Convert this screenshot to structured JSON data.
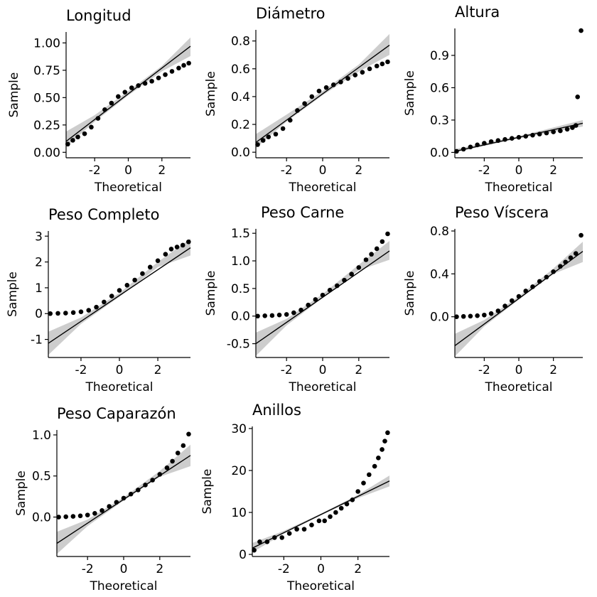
{
  "chart_data": [
    {
      "type": "scatter",
      "title": "Longitud",
      "xlabel": "Theoretical",
      "ylabel": "Sample",
      "xlim": [
        -3.7,
        3.7
      ],
      "ylim": [
        -0.05,
        1.1
      ],
      "xticks": [
        -2,
        0,
        2
      ],
      "xtick_labels": [
        "-2",
        "0",
        "2"
      ],
      "yticks": [
        0,
        0.25,
        0.5,
        0.75,
        1.0
      ],
      "ytick_labels": [
        "0.00",
        "0.25",
        "0.50",
        "0.75",
        "1.00"
      ],
      "points": [
        [
          -3.6,
          0.075
        ],
        [
          -3.3,
          0.11
        ],
        [
          -3.0,
          0.14
        ],
        [
          -2.6,
          0.17
        ],
        [
          -2.2,
          0.23
        ],
        [
          -1.8,
          0.31
        ],
        [
          -1.4,
          0.39
        ],
        [
          -1.0,
          0.45
        ],
        [
          -0.6,
          0.51
        ],
        [
          -0.2,
          0.55
        ],
        [
          0.2,
          0.59
        ],
        [
          0.6,
          0.61
        ],
        [
          1.0,
          0.63
        ],
        [
          1.4,
          0.65
        ],
        [
          1.8,
          0.68
        ],
        [
          2.2,
          0.71
        ],
        [
          2.6,
          0.74
        ],
        [
          3.0,
          0.77
        ],
        [
          3.3,
          0.795
        ],
        [
          3.6,
          0.815
        ]
      ],
      "line": [
        [
          -3.7,
          0.1
        ],
        [
          3.7,
          0.97
        ]
      ],
      "band": [
        [
          -3.7,
          0.05,
          0.19
        ],
        [
          -2.0,
          0.28,
          0.34
        ],
        [
          0.0,
          0.52,
          0.56
        ],
        [
          2.0,
          0.74,
          0.79
        ],
        [
          3.7,
          0.88,
          1.05
        ]
      ]
    },
    {
      "type": "scatter",
      "title": "Diámetro",
      "xlabel": "Theoretical",
      "ylabel": "Sample",
      "xlim": [
        -3.7,
        3.7
      ],
      "ylim": [
        -0.04,
        0.88
      ],
      "xticks": [
        -2,
        0,
        2
      ],
      "xtick_labels": [
        "-2",
        "0",
        "2"
      ],
      "yticks": [
        0,
        0.2,
        0.4,
        0.6,
        0.8
      ],
      "ytick_labels": [
        "0.0",
        "0.2",
        "0.4",
        "0.6",
        "0.8"
      ],
      "points": [
        [
          -3.6,
          0.055
        ],
        [
          -3.3,
          0.085
        ],
        [
          -3.0,
          0.11
        ],
        [
          -2.6,
          0.13
        ],
        [
          -2.2,
          0.17
        ],
        [
          -1.8,
          0.23
        ],
        [
          -1.4,
          0.3
        ],
        [
          -1.0,
          0.35
        ],
        [
          -0.6,
          0.4
        ],
        [
          -0.2,
          0.44
        ],
        [
          0.2,
          0.465
        ],
        [
          0.6,
          0.485
        ],
        [
          1.0,
          0.505
        ],
        [
          1.4,
          0.53
        ],
        [
          1.8,
          0.555
        ],
        [
          2.2,
          0.575
        ],
        [
          2.6,
          0.6
        ],
        [
          3.0,
          0.62
        ],
        [
          3.3,
          0.635
        ],
        [
          3.6,
          0.65
        ]
      ],
      "line": [
        [
          -3.7,
          0.07
        ],
        [
          3.7,
          0.77
        ]
      ],
      "band": [
        [
          -3.7,
          0.03,
          0.13
        ],
        [
          -2.0,
          0.22,
          0.27
        ],
        [
          0.0,
          0.41,
          0.44
        ],
        [
          2.0,
          0.58,
          0.63
        ],
        [
          3.7,
          0.7,
          0.85
        ]
      ]
    },
    {
      "type": "scatter",
      "title": "Altura",
      "xlabel": "Theoretical",
      "ylabel": "Sample",
      "xlim": [
        -3.7,
        3.7
      ],
      "ylim": [
        -0.05,
        1.15
      ],
      "xticks": [
        -2,
        0,
        2
      ],
      "xtick_labels": [
        "-2",
        "0",
        "2"
      ],
      "yticks": [
        0,
        0.3,
        0.6,
        0.9
      ],
      "ytick_labels": [
        "0.0",
        "0.3",
        "0.6",
        "0.9"
      ],
      "points": [
        [
          -3.6,
          0.01
        ],
        [
          -3.2,
          0.03
        ],
        [
          -2.8,
          0.05
        ],
        [
          -2.4,
          0.07
        ],
        [
          -2.0,
          0.085
        ],
        [
          -1.6,
          0.1
        ],
        [
          -1.2,
          0.11
        ],
        [
          -0.8,
          0.12
        ],
        [
          -0.4,
          0.13
        ],
        [
          0.0,
          0.14
        ],
        [
          0.4,
          0.15
        ],
        [
          0.8,
          0.16
        ],
        [
          1.2,
          0.17
        ],
        [
          1.6,
          0.18
        ],
        [
          2.0,
          0.19
        ],
        [
          2.4,
          0.2
        ],
        [
          2.8,
          0.215
        ],
        [
          3.1,
          0.23
        ],
        [
          3.3,
          0.25
        ],
        [
          3.4,
          0.515
        ],
        [
          3.6,
          1.13
        ]
      ],
      "line": [
        [
          -3.7,
          0.01
        ],
        [
          3.7,
          0.27
        ]
      ],
      "band": [
        [
          -3.7,
          0.0,
          0.03
        ],
        [
          0.0,
          0.13,
          0.15
        ],
        [
          3.7,
          0.24,
          0.3
        ]
      ]
    },
    {
      "type": "scatter",
      "title": "Peso Completo",
      "xlabel": "Theoretical",
      "ylabel": "Sample",
      "xlim": [
        -3.7,
        3.7
      ],
      "ylim": [
        -1.7,
        3.2
      ],
      "xticks": [
        -2,
        0,
        2
      ],
      "xtick_labels": [
        "-2",
        "0",
        "2"
      ],
      "yticks": [
        -1,
        0,
        1,
        2,
        3
      ],
      "ytick_labels": [
        "-1",
        "0",
        "1",
        "2",
        "3"
      ],
      "points": [
        [
          -3.6,
          0.0
        ],
        [
          -3.2,
          0.01
        ],
        [
          -2.8,
          0.02
        ],
        [
          -2.4,
          0.04
        ],
        [
          -2.0,
          0.07
        ],
        [
          -1.6,
          0.13
        ],
        [
          -1.2,
          0.25
        ],
        [
          -0.8,
          0.45
        ],
        [
          -0.4,
          0.68
        ],
        [
          0.0,
          0.9
        ],
        [
          0.4,
          1.1
        ],
        [
          0.8,
          1.3
        ],
        [
          1.2,
          1.55
        ],
        [
          1.6,
          1.8
        ],
        [
          2.0,
          2.05
        ],
        [
          2.4,
          2.3
        ],
        [
          2.7,
          2.5
        ],
        [
          3.0,
          2.58
        ],
        [
          3.3,
          2.65
        ],
        [
          3.6,
          2.78
        ]
      ],
      "line": [
        [
          -3.7,
          -1.15
        ],
        [
          3.7,
          2.55
        ]
      ],
      "band": [
        [
          -3.7,
          -1.6,
          -0.7
        ],
        [
          -2.0,
          -0.4,
          -0.15
        ],
        [
          0.0,
          0.65,
          0.8
        ],
        [
          2.0,
          1.8,
          2.0
        ],
        [
          3.7,
          2.25,
          2.9
        ]
      ]
    },
    {
      "type": "scatter",
      "title": "Peso Carne",
      "xlabel": "Theoretical",
      "ylabel": "Sample",
      "xlim": [
        -3.7,
        3.7
      ],
      "ylim": [
        -0.75,
        1.58
      ],
      "xticks": [
        -2,
        0,
        2
      ],
      "xtick_labels": [
        "-2",
        "0",
        "2"
      ],
      "yticks": [
        -0.5,
        0,
        0.5,
        1.0,
        1.5
      ],
      "ytick_labels": [
        "-0.5",
        "0.0",
        "0.5",
        "1.0",
        "1.5"
      ],
      "points": [
        [
          -3.6,
          0.0
        ],
        [
          -3.2,
          0.005
        ],
        [
          -2.8,
          0.01
        ],
        [
          -2.4,
          0.02
        ],
        [
          -2.0,
          0.03
        ],
        [
          -1.6,
          0.06
        ],
        [
          -1.2,
          0.11
        ],
        [
          -0.8,
          0.2
        ],
        [
          -0.4,
          0.3
        ],
        [
          0.0,
          0.38
        ],
        [
          0.4,
          0.47
        ],
        [
          0.8,
          0.55
        ],
        [
          1.2,
          0.65
        ],
        [
          1.6,
          0.76
        ],
        [
          2.0,
          0.88
        ],
        [
          2.4,
          1.02
        ],
        [
          2.7,
          1.12
        ],
        [
          3.0,
          1.22
        ],
        [
          3.3,
          1.35
        ],
        [
          3.6,
          1.49
        ]
      ],
      "line": [
        [
          -3.7,
          -0.5
        ],
        [
          3.7,
          1.18
        ]
      ],
      "band": [
        [
          -3.7,
          -0.72,
          -0.3
        ],
        [
          -2.0,
          -0.17,
          -0.05
        ],
        [
          0.0,
          0.33,
          0.4
        ],
        [
          2.0,
          0.83,
          0.93
        ],
        [
          3.7,
          1.02,
          1.36
        ]
      ]
    },
    {
      "type": "scatter",
      "title": "Peso Víscera",
      "xlabel": "Theoretical",
      "ylabel": "Sample",
      "xlim": [
        -3.7,
        3.7
      ],
      "ylim": [
        -0.38,
        0.82
      ],
      "xticks": [
        -2,
        0,
        2
      ],
      "xtick_labels": [
        "-2",
        "0",
        "2"
      ],
      "yticks": [
        0,
        0.4,
        0.8
      ],
      "ytick_labels": [
        "0.0",
        "0.4",
        "0.8"
      ],
      "points": [
        [
          -3.6,
          0.0
        ],
        [
          -3.2,
          0.003
        ],
        [
          -2.8,
          0.006
        ],
        [
          -2.4,
          0.01
        ],
        [
          -2.0,
          0.016
        ],
        [
          -1.6,
          0.03
        ],
        [
          -1.2,
          0.055
        ],
        [
          -0.8,
          0.1
        ],
        [
          -0.4,
          0.15
        ],
        [
          0.0,
          0.19
        ],
        [
          0.4,
          0.24
        ],
        [
          0.8,
          0.28
        ],
        [
          1.2,
          0.33
        ],
        [
          1.6,
          0.37
        ],
        [
          2.0,
          0.42
        ],
        [
          2.4,
          0.47
        ],
        [
          2.7,
          0.51
        ],
        [
          3.0,
          0.55
        ],
        [
          3.3,
          0.59
        ],
        [
          3.6,
          0.76
        ]
      ],
      "line": [
        [
          -3.7,
          -0.27
        ],
        [
          3.7,
          0.61
        ]
      ],
      "band": [
        [
          -3.7,
          -0.37,
          -0.16
        ],
        [
          -2.0,
          -0.09,
          -0.03
        ],
        [
          0.0,
          0.16,
          0.19
        ],
        [
          2.0,
          0.4,
          0.45
        ],
        [
          3.7,
          0.51,
          0.7
        ]
      ]
    },
    {
      "type": "scatter",
      "title": "Peso Caparazón",
      "xlabel": "Theoretical",
      "ylabel": "Sample",
      "xlim": [
        -3.7,
        3.7
      ],
      "ylim": [
        -0.48,
        1.06
      ],
      "xticks": [
        -2,
        0,
        2
      ],
      "xtick_labels": [
        "-2",
        "0",
        "2"
      ],
      "yticks": [
        0,
        0.5,
        1.0
      ],
      "ytick_labels": [
        "0.0",
        "0.5",
        "1.0"
      ],
      "points": [
        [
          -3.6,
          0.0
        ],
        [
          -3.2,
          0.004
        ],
        [
          -2.8,
          0.008
        ],
        [
          -2.4,
          0.015
        ],
        [
          -2.0,
          0.025
        ],
        [
          -1.6,
          0.045
        ],
        [
          -1.2,
          0.08
        ],
        [
          -0.8,
          0.13
        ],
        [
          -0.4,
          0.18
        ],
        [
          0.0,
          0.23
        ],
        [
          0.4,
          0.28
        ],
        [
          0.8,
          0.33
        ],
        [
          1.2,
          0.39
        ],
        [
          1.6,
          0.45
        ],
        [
          2.0,
          0.52
        ],
        [
          2.4,
          0.6
        ],
        [
          2.7,
          0.68
        ],
        [
          3.0,
          0.78
        ],
        [
          3.3,
          0.87
        ],
        [
          3.6,
          1.01
        ]
      ],
      "line": [
        [
          -3.7,
          -0.32
        ],
        [
          3.7,
          0.75
        ]
      ],
      "band": [
        [
          -3.7,
          -0.45,
          -0.18
        ],
        [
          -2.0,
          -0.11,
          -0.03
        ],
        [
          0.0,
          0.2,
          0.24
        ],
        [
          2.0,
          0.49,
          0.56
        ],
        [
          3.7,
          0.62,
          0.88
        ]
      ]
    },
    {
      "type": "scatter",
      "title": "Anillos",
      "xlabel": "Theoretical",
      "ylabel": "Sample",
      "xlim": [
        -3.7,
        3.7
      ],
      "ylim": [
        -0.5,
        30.5
      ],
      "xticks": [
        -2,
        0,
        2
      ],
      "xtick_labels": [
        "-2",
        "0",
        "2"
      ],
      "yticks": [
        0,
        10,
        20,
        30
      ],
      "ytick_labels": [
        "0",
        "10",
        "20",
        "30"
      ],
      "points": [
        [
          -3.6,
          1
        ],
        [
          -3.3,
          3
        ],
        [
          -2.9,
          3
        ],
        [
          -2.5,
          4
        ],
        [
          -2.1,
          4
        ],
        [
          -1.7,
          5
        ],
        [
          -1.3,
          6
        ],
        [
          -0.9,
          6
        ],
        [
          -0.5,
          7
        ],
        [
          -0.1,
          8
        ],
        [
          0.2,
          8
        ],
        [
          0.5,
          9
        ],
        [
          0.8,
          10
        ],
        [
          1.1,
          11
        ],
        [
          1.4,
          12
        ],
        [
          1.7,
          13
        ],
        [
          2.0,
          15
        ],
        [
          2.3,
          17
        ],
        [
          2.6,
          19
        ],
        [
          2.9,
          21
        ],
        [
          3.1,
          23
        ],
        [
          3.3,
          25
        ],
        [
          3.45,
          27
        ],
        [
          3.6,
          29
        ]
      ],
      "line": [
        [
          -3.7,
          1.5
        ],
        [
          3.7,
          17.5
        ]
      ],
      "band": [
        [
          -3.7,
          0.5,
          2.7
        ],
        [
          -2.0,
          4.9,
          5.6
        ],
        [
          0.0,
          9.3,
          9.7
        ],
        [
          2.0,
          13.4,
          14.2
        ],
        [
          3.7,
          16.2,
          18.8
        ]
      ]
    }
  ]
}
